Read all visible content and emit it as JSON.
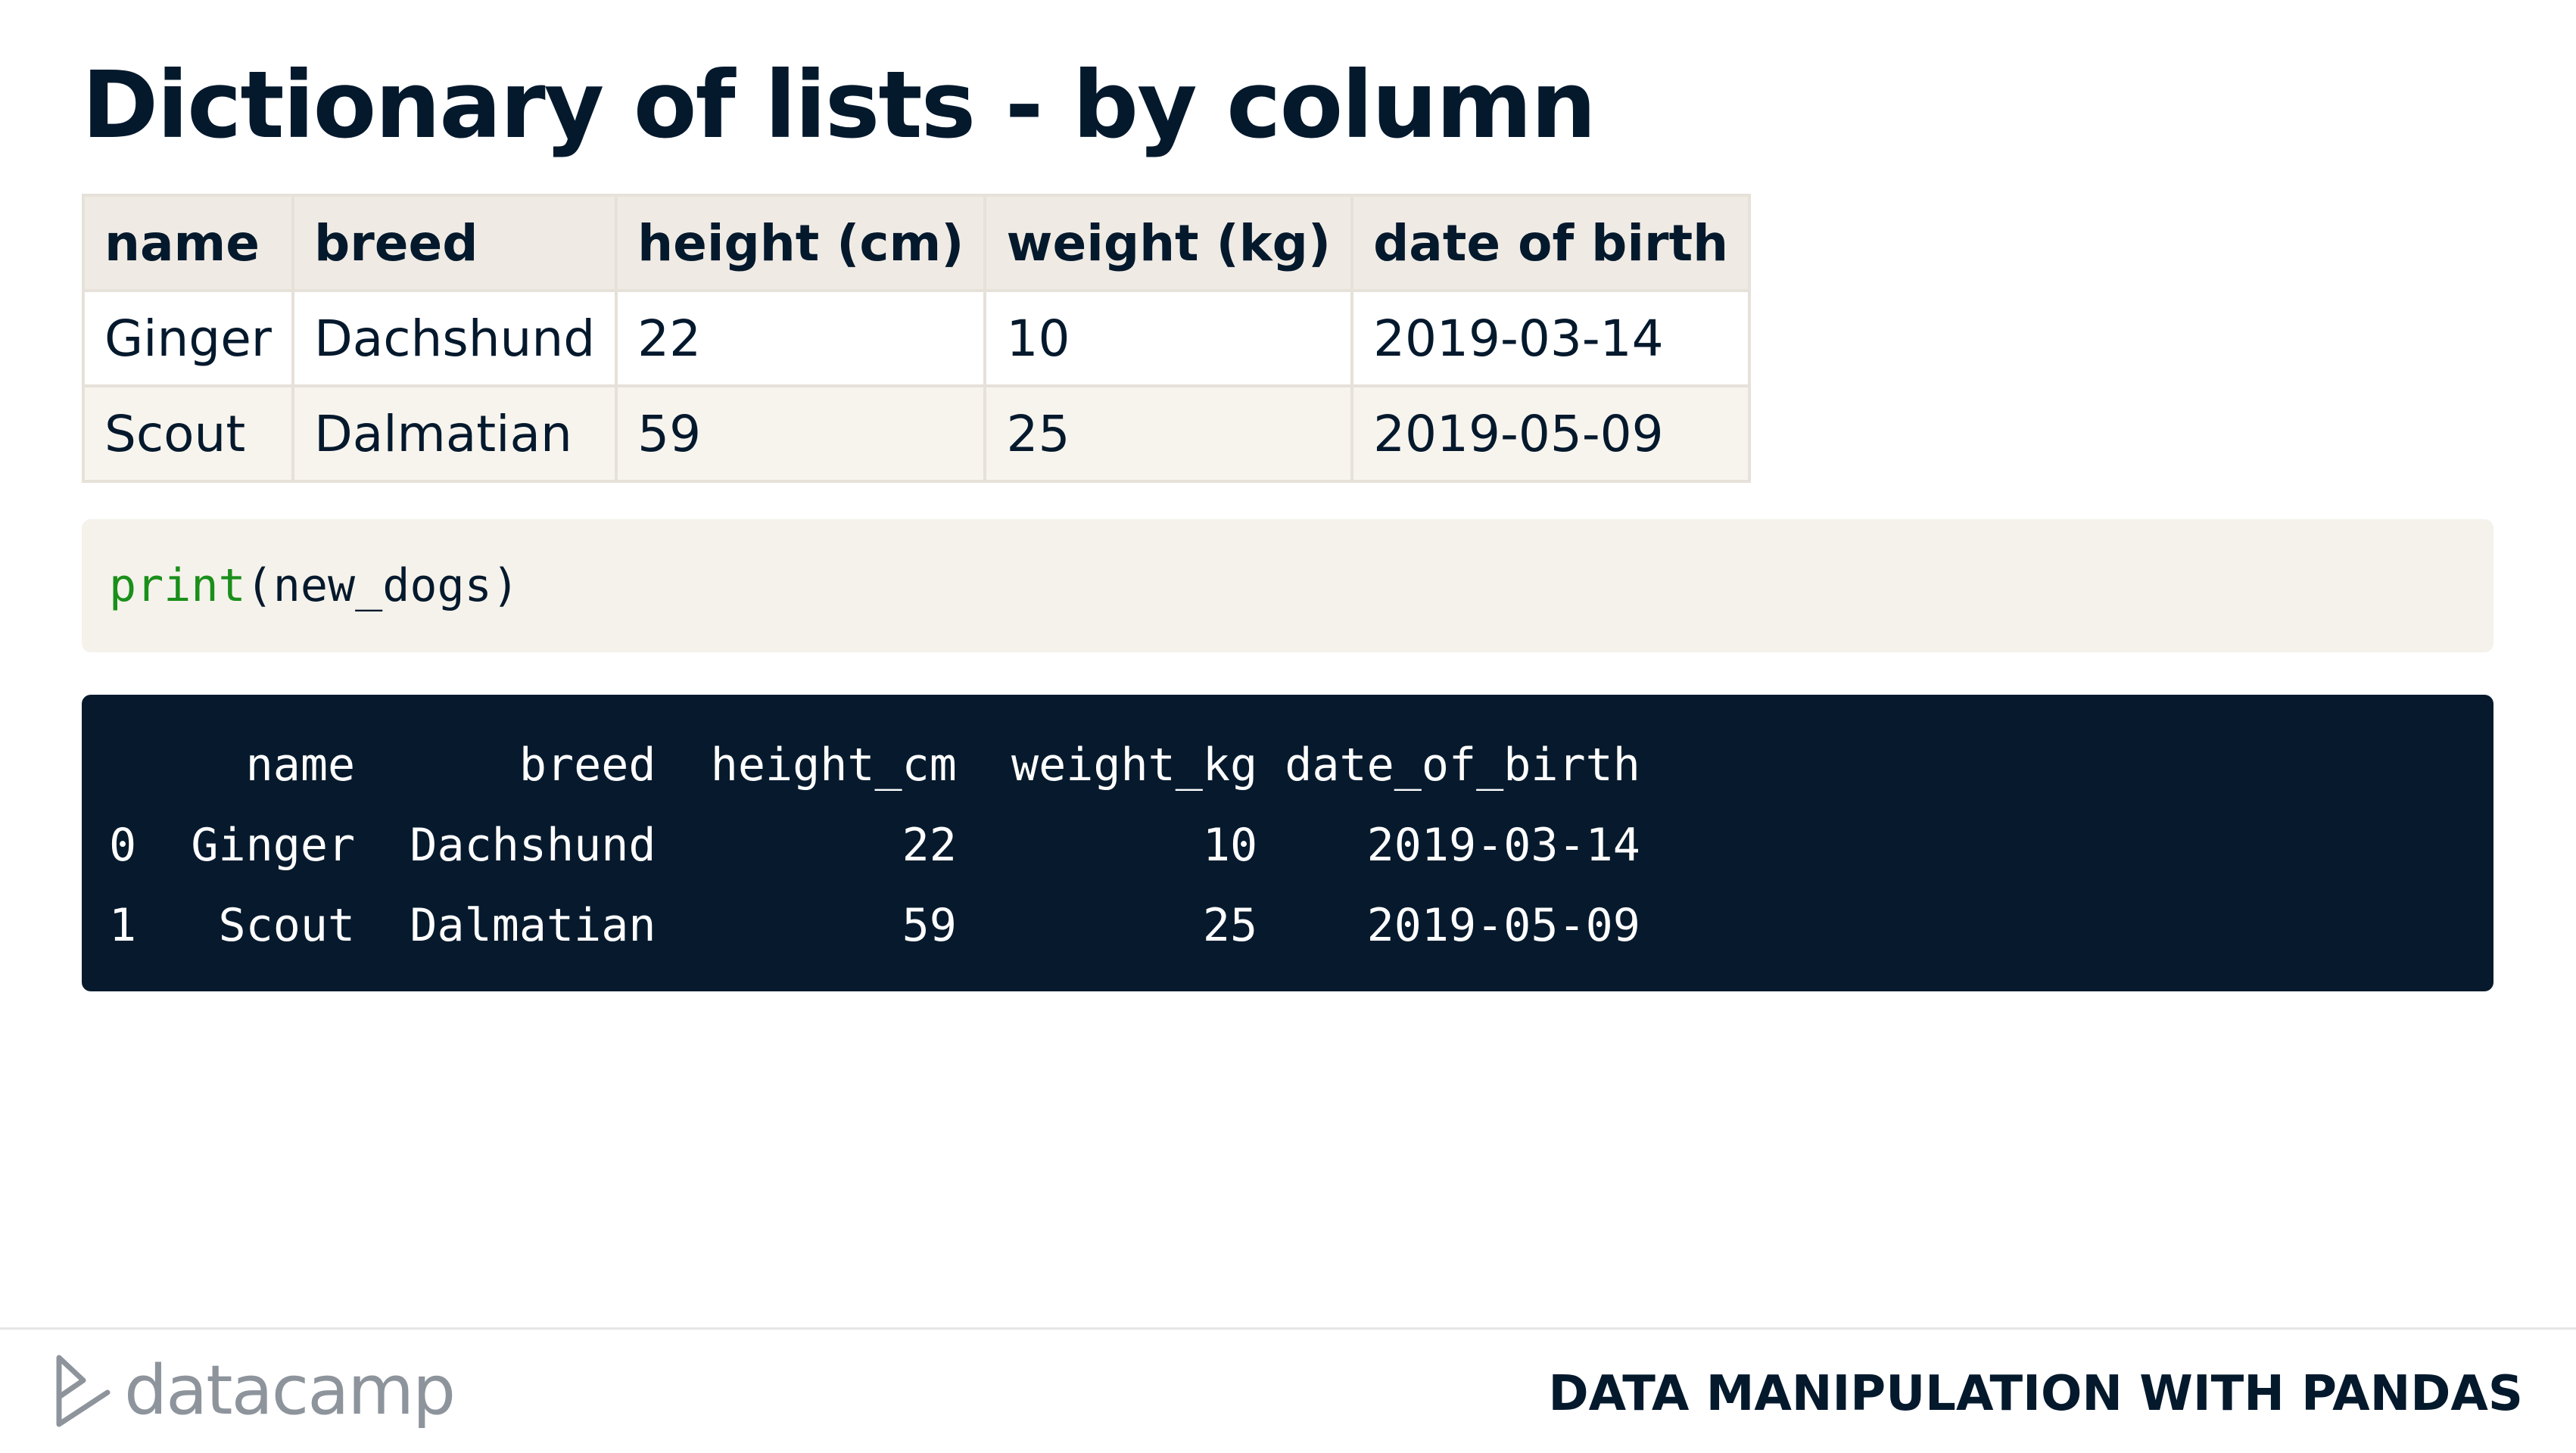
{
  "title": "Dictionary of lists - by column",
  "table": {
    "headers": [
      "name",
      "breed",
      "height (cm)",
      "weight (kg)",
      "date of birth"
    ],
    "rows": [
      [
        "Ginger",
        "Dachshund",
        "22",
        "10",
        "2019-03-14"
      ],
      [
        "Scout",
        "Dalmatian",
        "59",
        "25",
        "2019-05-09"
      ]
    ]
  },
  "code": {
    "function": "print",
    "args": "(new_dogs)"
  },
  "output": {
    "lines": [
      "     name      breed  height_cm  weight_kg date_of_birth",
      "0  Ginger  Dachshund         22         10    2019-03-14",
      "1   Scout  Dalmatian         59         25    2019-05-09"
    ]
  },
  "footer": {
    "brand": "datacamp",
    "course": "DATA MANIPULATION WITH PANDAS"
  },
  "colors": {
    "navy": "#05192d",
    "code_green": "#1a8f1a",
    "table_border": "#e6e1d9",
    "code_bg": "#f5f2eb",
    "output_bg": "#071a2d"
  }
}
